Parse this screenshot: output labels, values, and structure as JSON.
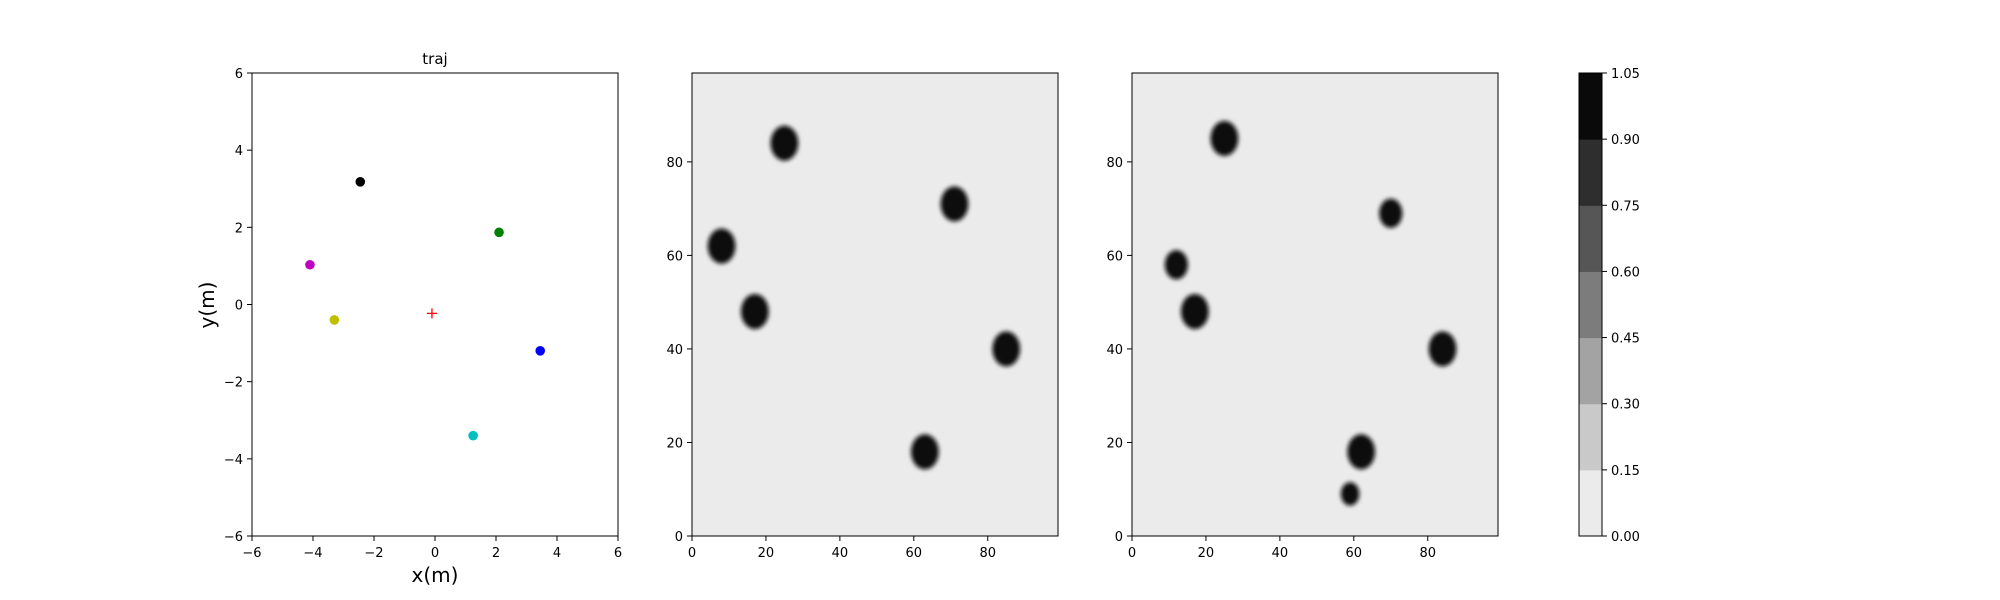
{
  "chart_data": [
    {
      "type": "scatter",
      "title": "traj",
      "xlabel": "x(m)",
      "ylabel": "y(m)",
      "xlim": [
        -6,
        6
      ],
      "ylim": [
        -6,
        6
      ],
      "xticks": [
        "−6",
        "−4",
        "−2",
        "0",
        "2",
        "4",
        "6"
      ],
      "yticks": [
        "−6",
        "−4",
        "−2",
        "0",
        "2",
        "4",
        "6"
      ],
      "grid": false,
      "points": [
        {
          "x": -2.45,
          "y": 3.18,
          "color": "#000000",
          "marker": "circle"
        },
        {
          "x": 2.1,
          "y": 1.87,
          "color": "#008000",
          "marker": "circle"
        },
        {
          "x": -4.1,
          "y": 1.03,
          "color": "#bf00bf",
          "marker": "circle"
        },
        {
          "x": -3.3,
          "y": -0.4,
          "color": "#bfbf00",
          "marker": "circle"
        },
        {
          "x": 3.45,
          "y": -1.2,
          "color": "#0000ff",
          "marker": "circle"
        },
        {
          "x": 1.25,
          "y": -3.4,
          "color": "#00bfbf",
          "marker": "circle"
        },
        {
          "x": -0.1,
          "y": -0.23,
          "color": "#ff0000",
          "marker": "plus"
        }
      ]
    },
    {
      "type": "heatmap",
      "xlim": [
        0,
        99
      ],
      "ylim": [
        0,
        99
      ],
      "xticks": [
        "0",
        "20",
        "40",
        "60",
        "80"
      ],
      "yticks": [
        "0",
        "20",
        "40",
        "60",
        "80"
      ],
      "background_value": 0.05,
      "blobs": [
        {
          "x": 25,
          "y": 84,
          "r": 3,
          "value": 1.0
        },
        {
          "x": 8,
          "y": 62,
          "r": 3,
          "value": 1.0
        },
        {
          "x": 17,
          "y": 48,
          "r": 3,
          "value": 1.0
        },
        {
          "x": 71,
          "y": 71,
          "r": 3,
          "value": 1.0
        },
        {
          "x": 85,
          "y": 40,
          "r": 3,
          "value": 1.0
        },
        {
          "x": 63,
          "y": 18,
          "r": 3,
          "value": 1.0
        }
      ]
    },
    {
      "type": "heatmap",
      "xlim": [
        0,
        99
      ],
      "ylim": [
        0,
        99
      ],
      "xticks": [
        "0",
        "20",
        "40",
        "60",
        "80"
      ],
      "yticks": [
        "0",
        "20",
        "40",
        "60",
        "80"
      ],
      "background_value": 0.05,
      "blobs": [
        {
          "x": 25,
          "y": 85,
          "r": 3,
          "value": 1.0
        },
        {
          "x": 12,
          "y": 58,
          "r": 2.5,
          "value": 1.0
        },
        {
          "x": 17,
          "y": 48,
          "r": 3,
          "value": 1.0
        },
        {
          "x": 70,
          "y": 69,
          "r": 2.5,
          "value": 1.0
        },
        {
          "x": 84,
          "y": 40,
          "r": 3,
          "value": 1.0
        },
        {
          "x": 62,
          "y": 18,
          "r": 3,
          "value": 1.0
        },
        {
          "x": 59,
          "y": 9,
          "r": 2,
          "value": 1.0
        }
      ]
    }
  ],
  "colorbar": {
    "levels": [
      "0.00",
      "0.15",
      "0.30",
      "0.45",
      "0.60",
      "0.75",
      "0.90",
      "1.05"
    ],
    "colors": [
      "#ebebeb",
      "#c9c9c9",
      "#a3a3a3",
      "#7c7c7c",
      "#565656",
      "#2e2e2e",
      "#0a0a0a"
    ]
  },
  "colors": {
    "frame": "#000000",
    "heat_background": "#ebebeb",
    "heat_blob": "#0a0a0a"
  }
}
